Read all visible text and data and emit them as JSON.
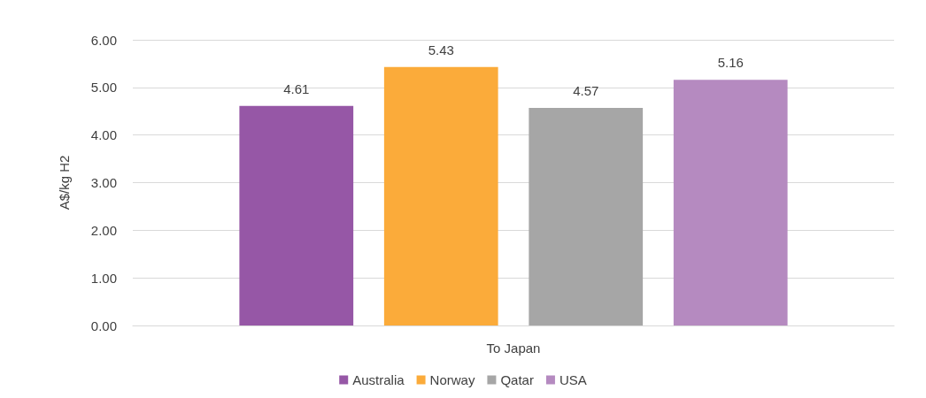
{
  "chart_data": {
    "type": "bar",
    "ylabel": "A$/kg H2",
    "categories": [
      "To Japan"
    ],
    "series": [
      {
        "name": "Australia",
        "color": "#9657a6",
        "values": [
          4.61
        ]
      },
      {
        "name": "Norway",
        "color": "#fbab3a",
        "values": [
          5.43
        ]
      },
      {
        "name": "Qatar",
        "color": "#a6a6a6",
        "values": [
          4.57
        ]
      },
      {
        "name": "USA",
        "color": "#b58ac0",
        "values": [
          5.16
        ]
      }
    ],
    "ylim": [
      0,
      6
    ],
    "yticks": [
      {
        "value": 0,
        "label": "0.00"
      },
      {
        "value": 1,
        "label": "1.00"
      },
      {
        "value": 2,
        "label": "2.00"
      },
      {
        "value": 3,
        "label": "3.00"
      },
      {
        "value": 4,
        "label": "4.00"
      },
      {
        "value": 5,
        "label": "5.00"
      },
      {
        "value": 6,
        "label": "6.00"
      }
    ],
    "grid": "y",
    "legend": "bottom",
    "data_labels": true
  }
}
